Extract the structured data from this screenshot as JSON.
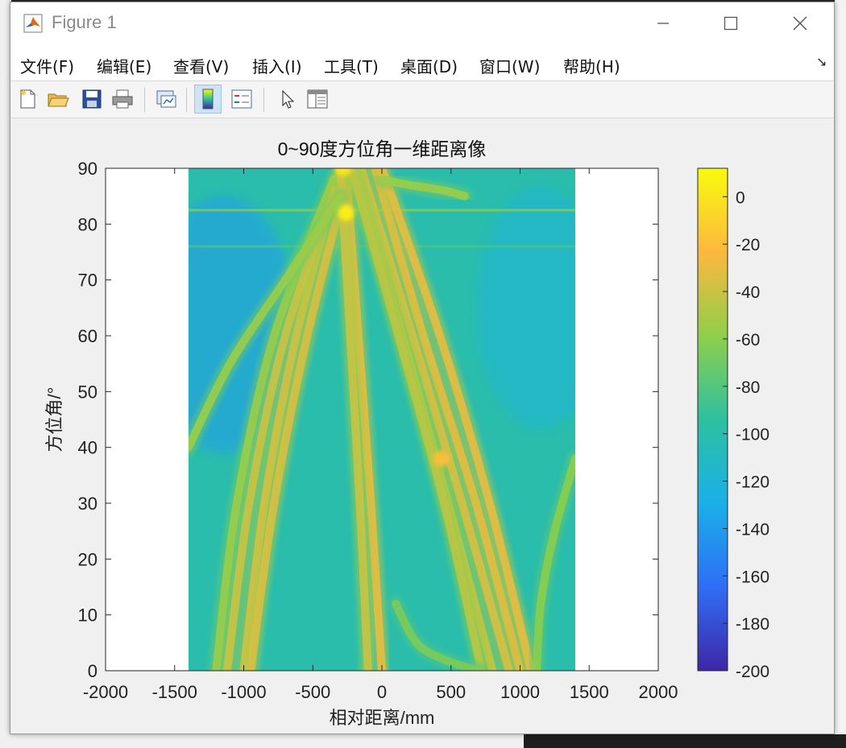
{
  "window": {
    "title": "Figure 1"
  },
  "menu": [
    {
      "label": "文件(F)"
    },
    {
      "label": "编辑(E)"
    },
    {
      "label": "查看(V)"
    },
    {
      "label": "插入(I)"
    },
    {
      "label": "工具(T)"
    },
    {
      "label": "桌面(D)"
    },
    {
      "label": "窗口(W)"
    },
    {
      "label": "帮助(H)"
    }
  ],
  "toolbar": [
    "new-figure-icon",
    "open-file-icon",
    "save-icon",
    "print-icon",
    "link-plot-icon",
    "colorbar-icon",
    "legend-icon",
    "pointer-icon",
    "property-editor-icon"
  ],
  "chart_data": {
    "type": "heatmap",
    "title": "0~90度方位角一维距离像",
    "xlabel": "相对距离/mm",
    "ylabel": "方位角/°",
    "xlim": [
      -2000,
      2000
    ],
    "ylim": [
      0,
      90
    ],
    "xticks": [
      -2000,
      -1500,
      -1000,
      -500,
      0,
      500,
      1000,
      1500,
      2000
    ],
    "yticks": [
      0,
      10,
      20,
      30,
      40,
      50,
      60,
      70,
      80,
      90
    ],
    "data_extent_x": [
      -1400,
      1400
    ],
    "colorbar": {
      "min": -200,
      "max": 12,
      "ticks": [
        0,
        -20,
        -40,
        -60,
        -80,
        -100,
        -120,
        -140,
        -160,
        -180,
        -200
      ]
    },
    "background_level": -100,
    "colormap": [
      "#3e26a8",
      "#2f6ef5",
      "#1ab0e8",
      "#2dc0a0",
      "#8fcf4a",
      "#fcb83e",
      "#f9fb0e"
    ],
    "traces": [
      {
        "level": -35,
        "points": [
          [
            -1000,
            0
          ],
          [
            -850,
            30
          ],
          [
            -620,
            60
          ],
          [
            -300,
            90
          ]
        ]
      },
      {
        "level": -35,
        "points": [
          [
            -950,
            0
          ],
          [
            -780,
            30
          ],
          [
            -540,
            60
          ],
          [
            -230,
            90
          ]
        ]
      },
      {
        "level": -55,
        "points": [
          [
            -1200,
            0
          ],
          [
            -1050,
            30
          ],
          [
            -780,
            60
          ],
          [
            -350,
            88
          ]
        ]
      },
      {
        "level": -40,
        "points": [
          [
            -1120,
            0
          ],
          [
            -960,
            30
          ],
          [
            -700,
            60
          ],
          [
            -340,
            86
          ]
        ]
      },
      {
        "level": -30,
        "points": [
          [
            0,
            0
          ],
          [
            -80,
            30
          ],
          [
            -170,
            60
          ],
          [
            -260,
            90
          ]
        ]
      },
      {
        "level": -40,
        "points": [
          [
            -100,
            0
          ],
          [
            -160,
            30
          ],
          [
            -230,
            60
          ],
          [
            -300,
            90
          ]
        ]
      },
      {
        "level": -30,
        "points": [
          [
            1000,
            0
          ],
          [
            680,
            30
          ],
          [
            300,
            60
          ],
          [
            -50,
            90
          ]
        ]
      },
      {
        "level": -30,
        "points": [
          [
            1080,
            0
          ],
          [
            780,
            30
          ],
          [
            420,
            60
          ],
          [
            0,
            90
          ]
        ]
      },
      {
        "level": -35,
        "points": [
          [
            920,
            0
          ],
          [
            580,
            30
          ],
          [
            220,
            60
          ],
          [
            -150,
            90
          ]
        ]
      },
      {
        "level": -40,
        "points": [
          [
            800,
            0
          ],
          [
            480,
            30
          ],
          [
            150,
            60
          ],
          [
            -200,
            90
          ]
        ]
      },
      {
        "level": -45,
        "points": [
          [
            720,
            0
          ],
          [
            450,
            30
          ],
          [
            120,
            60
          ],
          [
            -220,
            90
          ]
        ]
      },
      {
        "level": -55,
        "points": [
          [
            -1400,
            40
          ],
          [
            -1100,
            55
          ],
          [
            -700,
            70
          ],
          [
            -300,
            85
          ]
        ]
      },
      {
        "level": -60,
        "points": [
          [
            1400,
            38
          ],
          [
            1250,
            25
          ],
          [
            1150,
            12
          ],
          [
            1120,
            0
          ]
        ]
      },
      {
        "level": -65,
        "points": [
          [
            100,
            12
          ],
          [
            250,
            5
          ],
          [
            450,
            2
          ],
          [
            700,
            0
          ]
        ]
      },
      {
        "level": -55,
        "points": [
          [
            0,
            88
          ],
          [
            200,
            87
          ],
          [
            450,
            86
          ],
          [
            600,
            85
          ]
        ]
      }
    ],
    "hot_spots": [
      {
        "x": -260,
        "y": 82,
        "level": 5
      },
      {
        "x": -280,
        "y": 90,
        "level": 0
      },
      {
        "x": 430,
        "y": 38,
        "level": -20
      }
    ],
    "streaks": [
      {
        "y": 82.5,
        "level": -55
      },
      {
        "y": 76,
        "level": -80
      }
    ]
  }
}
